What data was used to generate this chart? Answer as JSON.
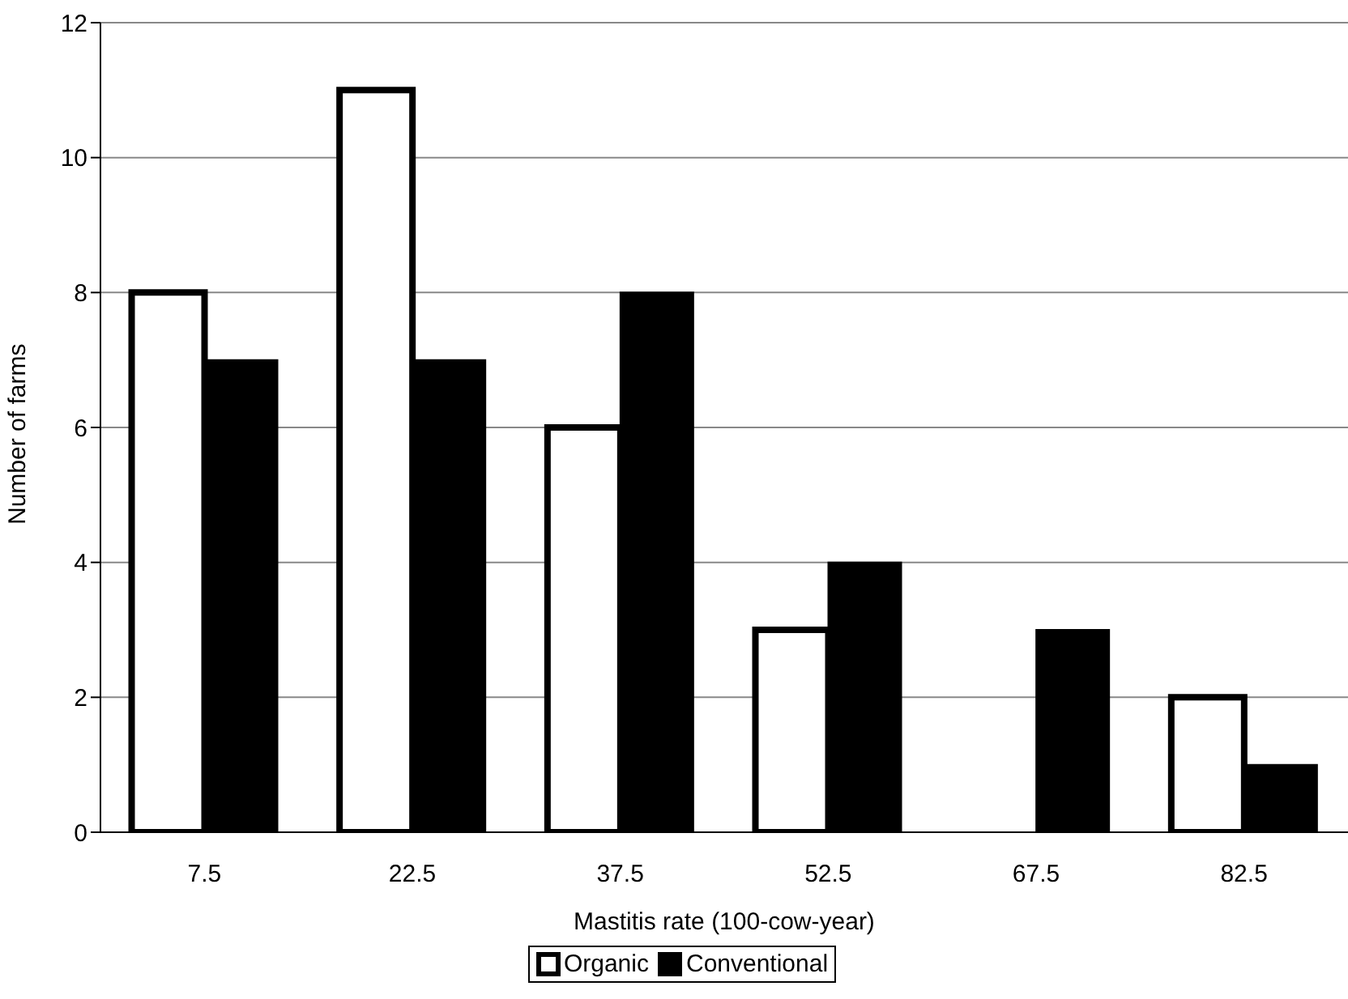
{
  "chart_data": {
    "type": "bar",
    "xlabel": "Mastitis rate (100-cow-year)",
    "ylabel": "Number of farms",
    "categories": [
      "7.5",
      "22.5",
      "37.5",
      "52.5",
      "67.5",
      "82.5"
    ],
    "series": [
      {
        "name": "Organic",
        "color": "#ffffff",
        "values": [
          8,
          11,
          6,
          3,
          0,
          2
        ]
      },
      {
        "name": "Conventional",
        "color": "#000000",
        "values": [
          7,
          7,
          8,
          4,
          3,
          1
        ]
      }
    ],
    "ylim": [
      0,
      12
    ],
    "yticks": [
      0,
      2,
      4,
      6,
      8,
      10,
      12
    ],
    "grid": "y",
    "legend": "bottom"
  }
}
